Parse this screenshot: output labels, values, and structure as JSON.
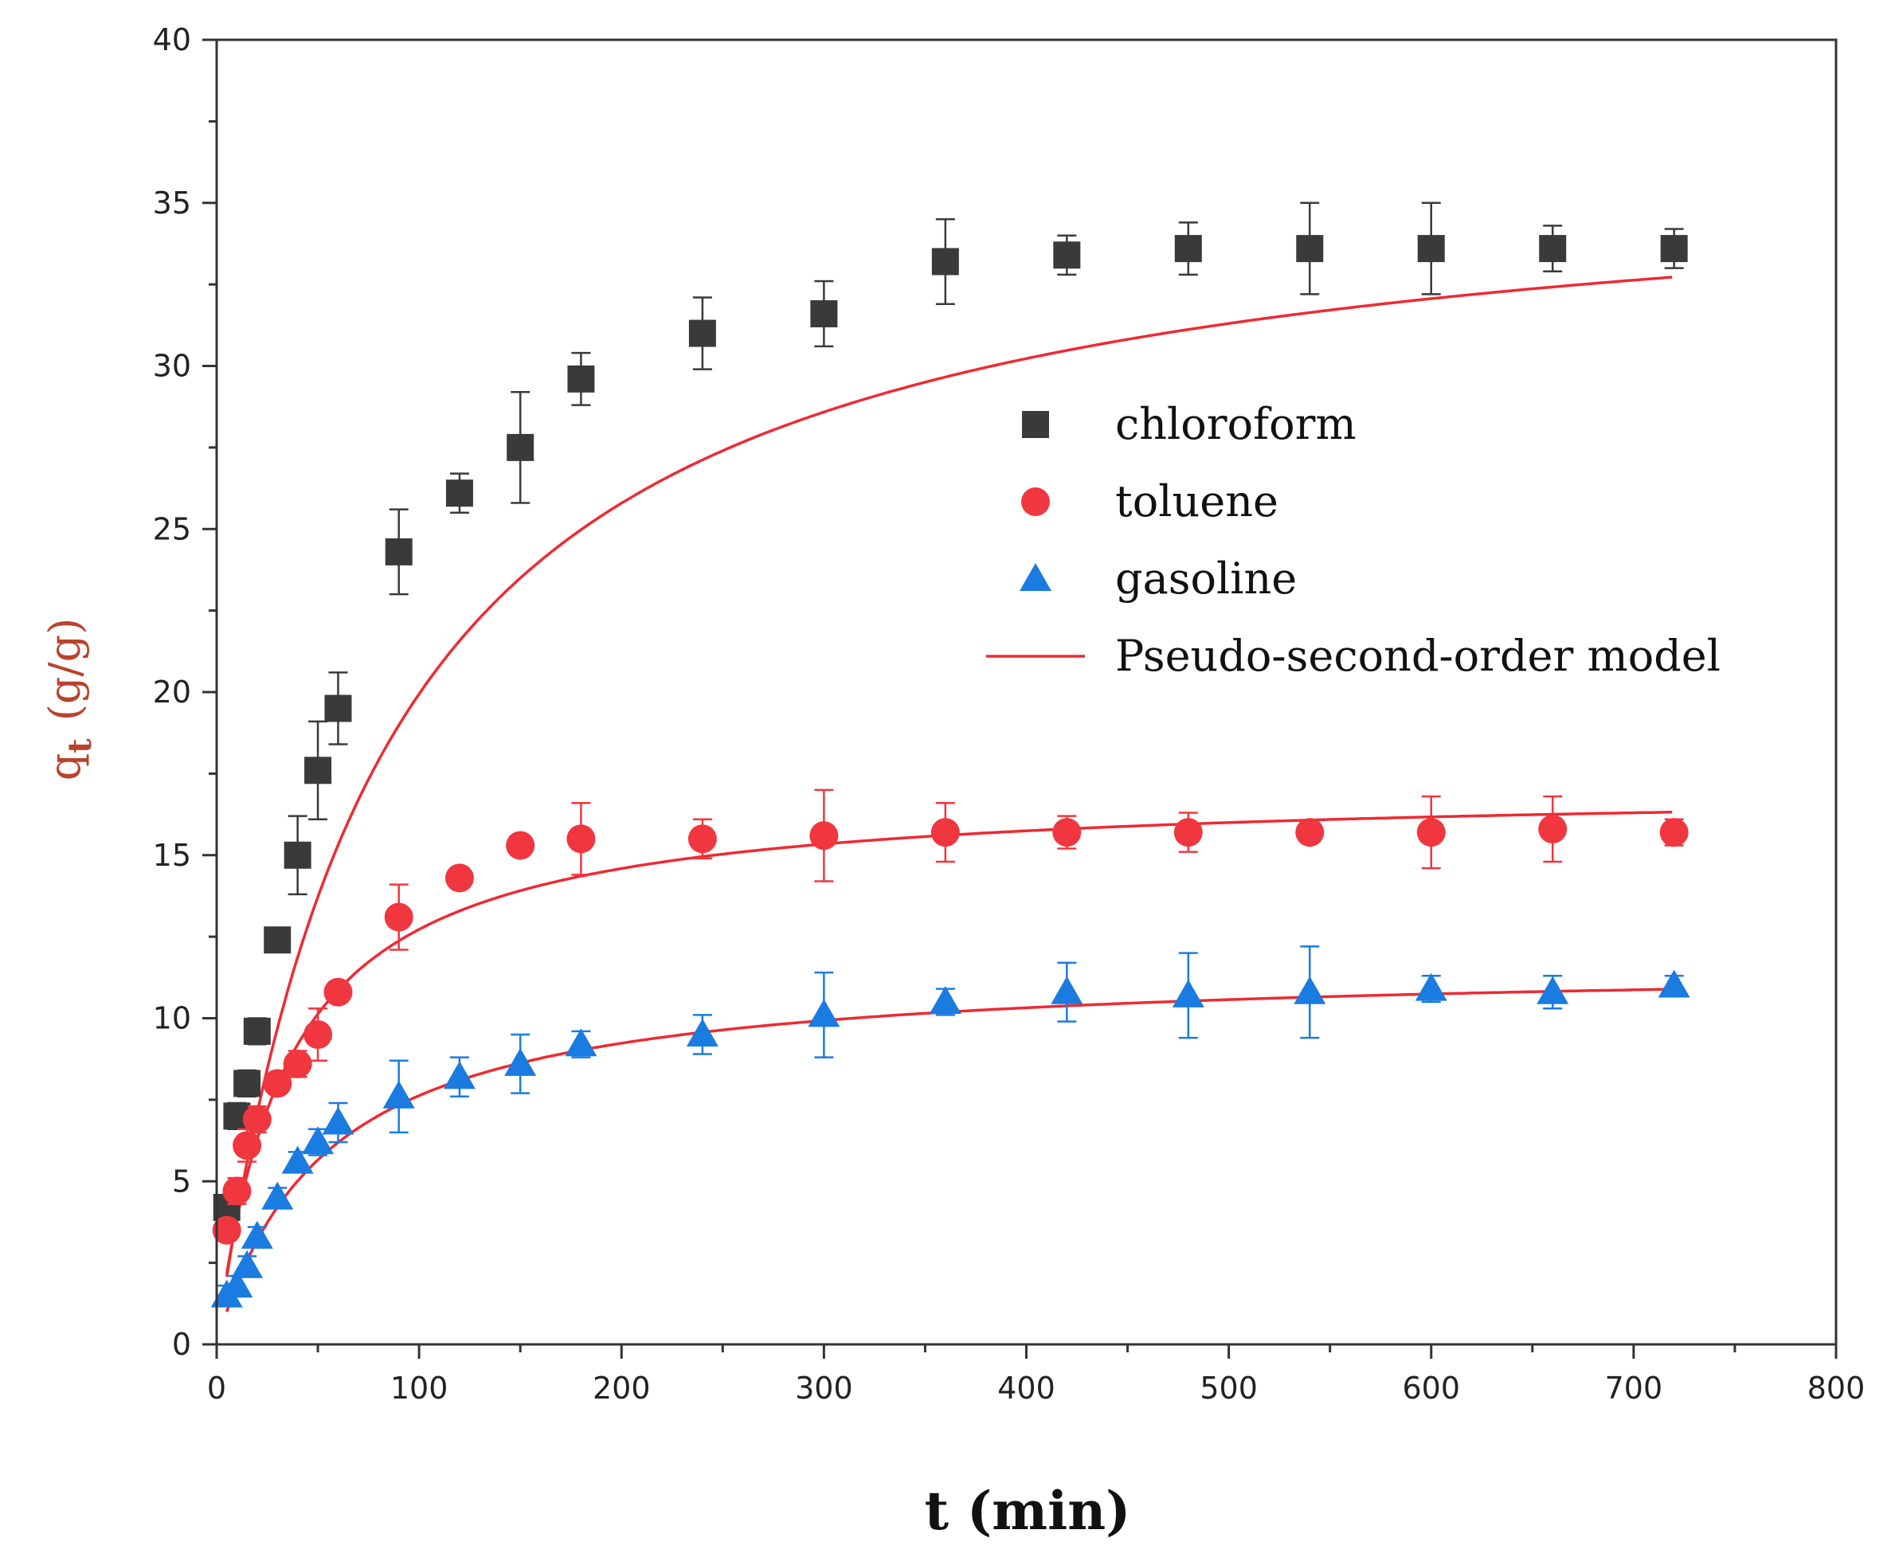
{
  "chart_data": {
    "type": "scatter",
    "title": "",
    "xlabel": "t (min)",
    "ylabel": {
      "symbol": "q",
      "subscript": "t",
      "unit": "(g/g)"
    },
    "xlim": [
      0,
      800
    ],
    "ylim": [
      0,
      40
    ],
    "xticks": [
      0,
      100,
      200,
      300,
      400,
      500,
      600,
      700,
      800
    ],
    "yticks": [
      0,
      5,
      10,
      15,
      20,
      25,
      30,
      35,
      40
    ],
    "grid": false,
    "legend_position": "right-middle",
    "series": [
      {
        "name": "chloroform",
        "marker": "square",
        "color": "#3a3a3a",
        "x": [
          5,
          10,
          15,
          20,
          30,
          40,
          50,
          60,
          90,
          120,
          150,
          180,
          240,
          300,
          360,
          420,
          480,
          540,
          600,
          660,
          720
        ],
        "y": [
          4.2,
          7.0,
          8.0,
          9.6,
          12.4,
          15.0,
          17.6,
          19.5,
          24.3,
          26.1,
          27.5,
          29.6,
          31.0,
          31.6,
          33.2,
          33.4,
          33.6,
          33.6,
          33.6,
          33.6,
          33.6
        ],
        "err": [
          0.3,
          0.4,
          0.4,
          0.4,
          0.3,
          1.2,
          1.5,
          1.1,
          1.3,
          0.6,
          1.7,
          0.8,
          1.1,
          1.0,
          1.3,
          0.6,
          0.8,
          1.4,
          1.4,
          0.7,
          0.6
        ]
      },
      {
        "name": "toluene",
        "marker": "circle",
        "color": "#f0363f",
        "x": [
          5,
          10,
          15,
          20,
          30,
          40,
          50,
          60,
          90,
          120,
          150,
          180,
          240,
          300,
          360,
          420,
          480,
          540,
          600,
          660,
          720
        ],
        "y": [
          3.5,
          4.7,
          6.1,
          6.9,
          8.0,
          8.6,
          9.5,
          10.8,
          13.1,
          14.3,
          15.3,
          15.5,
          15.5,
          15.6,
          15.7,
          15.7,
          15.7,
          15.7,
          15.7,
          15.8,
          15.7
        ],
        "err": [
          0.3,
          0.4,
          0.5,
          0.4,
          0.3,
          0.4,
          0.8,
          0.3,
          1.0,
          0.3,
          0.3,
          1.1,
          0.6,
          1.4,
          0.9,
          0.5,
          0.6,
          0.3,
          1.1,
          1.0,
          0.4
        ]
      },
      {
        "name": "gasoline",
        "marker": "triangle",
        "color": "#1a7be0",
        "x": [
          5,
          10,
          15,
          20,
          30,
          40,
          50,
          60,
          90,
          120,
          150,
          180,
          240,
          300,
          360,
          420,
          480,
          540,
          600,
          660,
          720
        ],
        "y": [
          1.5,
          1.8,
          2.4,
          3.3,
          4.5,
          5.6,
          6.2,
          6.8,
          7.6,
          8.2,
          8.6,
          9.2,
          9.5,
          10.1,
          10.5,
          10.8,
          10.7,
          10.8,
          10.9,
          10.8,
          11.0
        ],
        "err": [
          0.3,
          0.3,
          0.3,
          0.3,
          0.3,
          0.3,
          0.4,
          0.6,
          1.1,
          0.6,
          0.9,
          0.4,
          0.6,
          1.3,
          0.4,
          0.9,
          1.3,
          1.4,
          0.4,
          0.5,
          0.3
        ]
      },
      {
        "name": "Pseudo-second-order model",
        "marker": "line",
        "color": "#ee2a33",
        "curves": [
          {
            "qe": 36.5,
            "k": 0.00033,
            "x_start": 5,
            "x_end": 720
          },
          {
            "qe": 17.1,
            "k": 0.0017,
            "x_start": 5,
            "x_end": 720
          },
          {
            "qe": 11.7,
            "k": 0.0016,
            "x_start": 5,
            "x_end": 720
          }
        ]
      }
    ]
  }
}
